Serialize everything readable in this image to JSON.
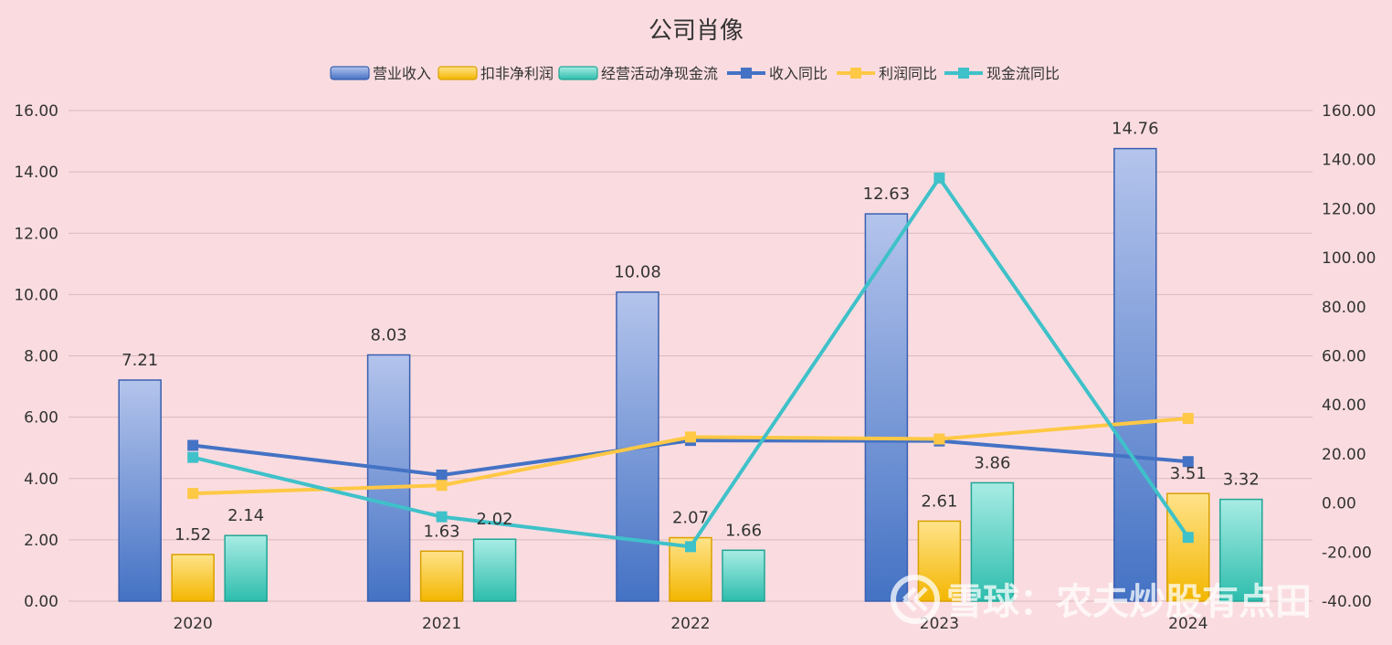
{
  "chart_data": {
    "type": "bar",
    "title": "公司肖像",
    "categories": [
      "2020",
      "2021",
      "2022",
      "2023",
      "2024"
    ],
    "series": [
      {
        "name": "营业收入",
        "kind": "bar",
        "axis": "left",
        "color": "#4472c4",
        "values": [
          7.21,
          8.03,
          10.08,
          12.63,
          14.76
        ]
      },
      {
        "name": "扣非净利润",
        "kind": "bar",
        "axis": "left",
        "color": "#f5b800",
        "values": [
          1.52,
          1.63,
          2.07,
          2.61,
          3.51
        ]
      },
      {
        "name": "经营活动净现金流",
        "kind": "bar",
        "axis": "left",
        "color": "#2fbfae",
        "values": [
          2.14,
          2.02,
          1.66,
          3.86,
          3.32
        ]
      },
      {
        "name": "收入同比",
        "kind": "line",
        "axis": "right",
        "color": "#4472c4",
        "values": [
          23.5,
          11.4,
          25.5,
          25.3,
          16.9
        ]
      },
      {
        "name": "利润同比",
        "kind": "line",
        "axis": "right",
        "color": "#ffc845",
        "values": [
          3.9,
          7.2,
          26.9,
          26.1,
          34.5
        ]
      },
      {
        "name": "现金流同比",
        "kind": "line",
        "axis": "right",
        "color": "#3fc1c9",
        "values": [
          18.6,
          -5.6,
          -17.8,
          132.5,
          -14.0
        ]
      }
    ],
    "left_axis": {
      "min": 0,
      "max": 16,
      "step": 2,
      "ticks": [
        "0.00",
        "2.00",
        "4.00",
        "6.00",
        "8.00",
        "10.00",
        "12.00",
        "14.00",
        "16.00"
      ]
    },
    "right_axis": {
      "min": -40,
      "max": 160,
      "step": 20,
      "ticks": [
        "-40.00",
        "-20.00",
        "0.00",
        "20.00",
        "40.00",
        "60.00",
        "80.00",
        "100.00",
        "120.00",
        "140.00",
        "160.00"
      ]
    },
    "data_labels": [
      [
        "7.21",
        "1.52",
        "2.14"
      ],
      [
        "8.03",
        "1.63",
        "2.02"
      ],
      [
        "10.08",
        "2.07",
        "1.66"
      ],
      [
        "12.63",
        "2.61",
        "3.86"
      ],
      [
        "14.76",
        "3.51",
        "3.32"
      ]
    ],
    "grid": true,
    "legend_position": "top-center"
  },
  "watermark": {
    "text": "雪球：农夫炒股有点田",
    "icon": "xueqiu-logo-icon"
  }
}
